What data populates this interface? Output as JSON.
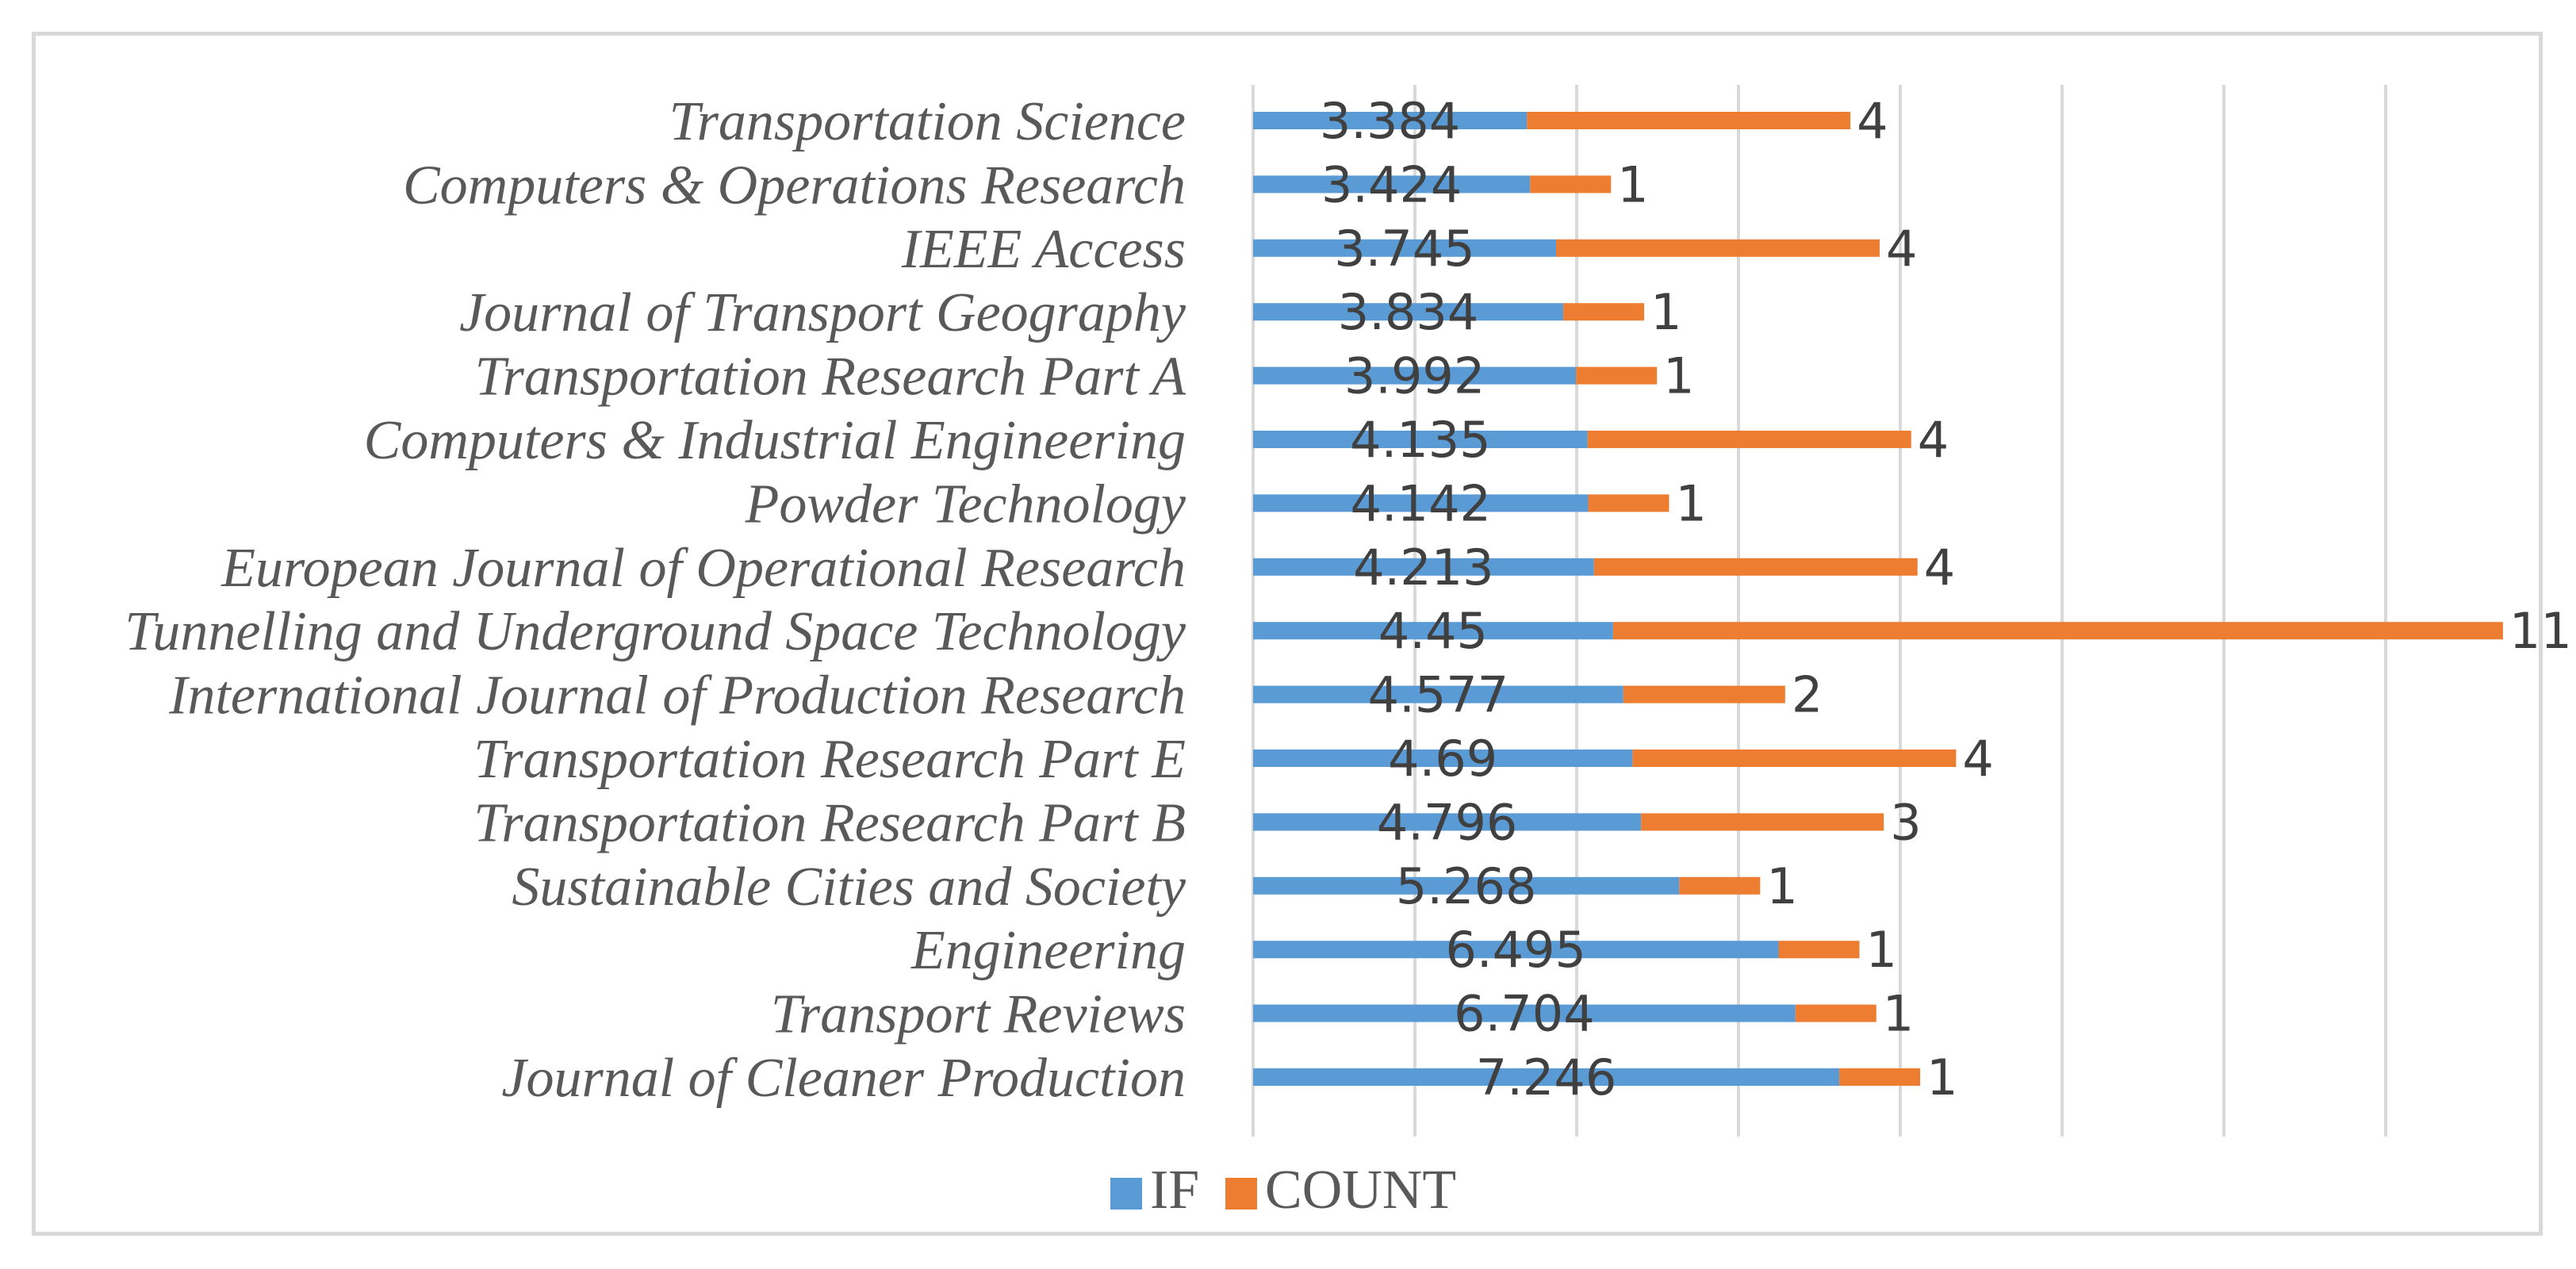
{
  "chart_data": {
    "type": "bar",
    "orientation": "horizontal",
    "stacked": true,
    "title": "",
    "xlabel": "",
    "ylabel": "",
    "xlim": [
      0,
      16
    ],
    "grid": true,
    "legend_position": "bottom",
    "categories": [
      "Transportation Science",
      "Computers & Operations Research",
      "IEEE Access",
      "Journal of Transport Geography",
      "Transportation Research Part A",
      "Computers & Industrial Engineering",
      "Powder Technology",
      "European Journal of Operational Research",
      "Tunnelling and Underground Space Technology",
      "International Journal of Production Research",
      "Transportation Research Part E",
      "Transportation Research Part B",
      "Sustainable Cities and Society",
      "Engineering",
      "Transport Reviews",
      "Journal of Cleaner Production"
    ],
    "series": [
      {
        "name": "IF",
        "color": "#5b9bd5",
        "values": [
          3.384,
          3.424,
          3.745,
          3.834,
          3.992,
          4.135,
          4.142,
          4.213,
          4.45,
          4.577,
          4.69,
          4.796,
          5.268,
          6.495,
          6.704,
          7.246
        ],
        "labels": [
          "3.384",
          "3.424",
          "3.745",
          "3.834",
          "3.992",
          "4.135",
          "4.142",
          "4.213",
          "4.45",
          "4.577",
          "4.69",
          "4.796",
          "5.268",
          "6.495",
          "6.704",
          "7.246"
        ]
      },
      {
        "name": "COUNT",
        "color": "#ed7d31",
        "values": [
          4,
          1,
          4,
          1,
          1,
          4,
          1,
          4,
          11,
          2,
          4,
          3,
          1,
          1,
          1,
          1
        ],
        "labels": [
          "4",
          "1",
          "4",
          "1",
          "1",
          "4",
          "1",
          "4",
          "11",
          "2",
          "4",
          "3",
          "1",
          "1",
          "1",
          "1"
        ]
      }
    ]
  }
}
